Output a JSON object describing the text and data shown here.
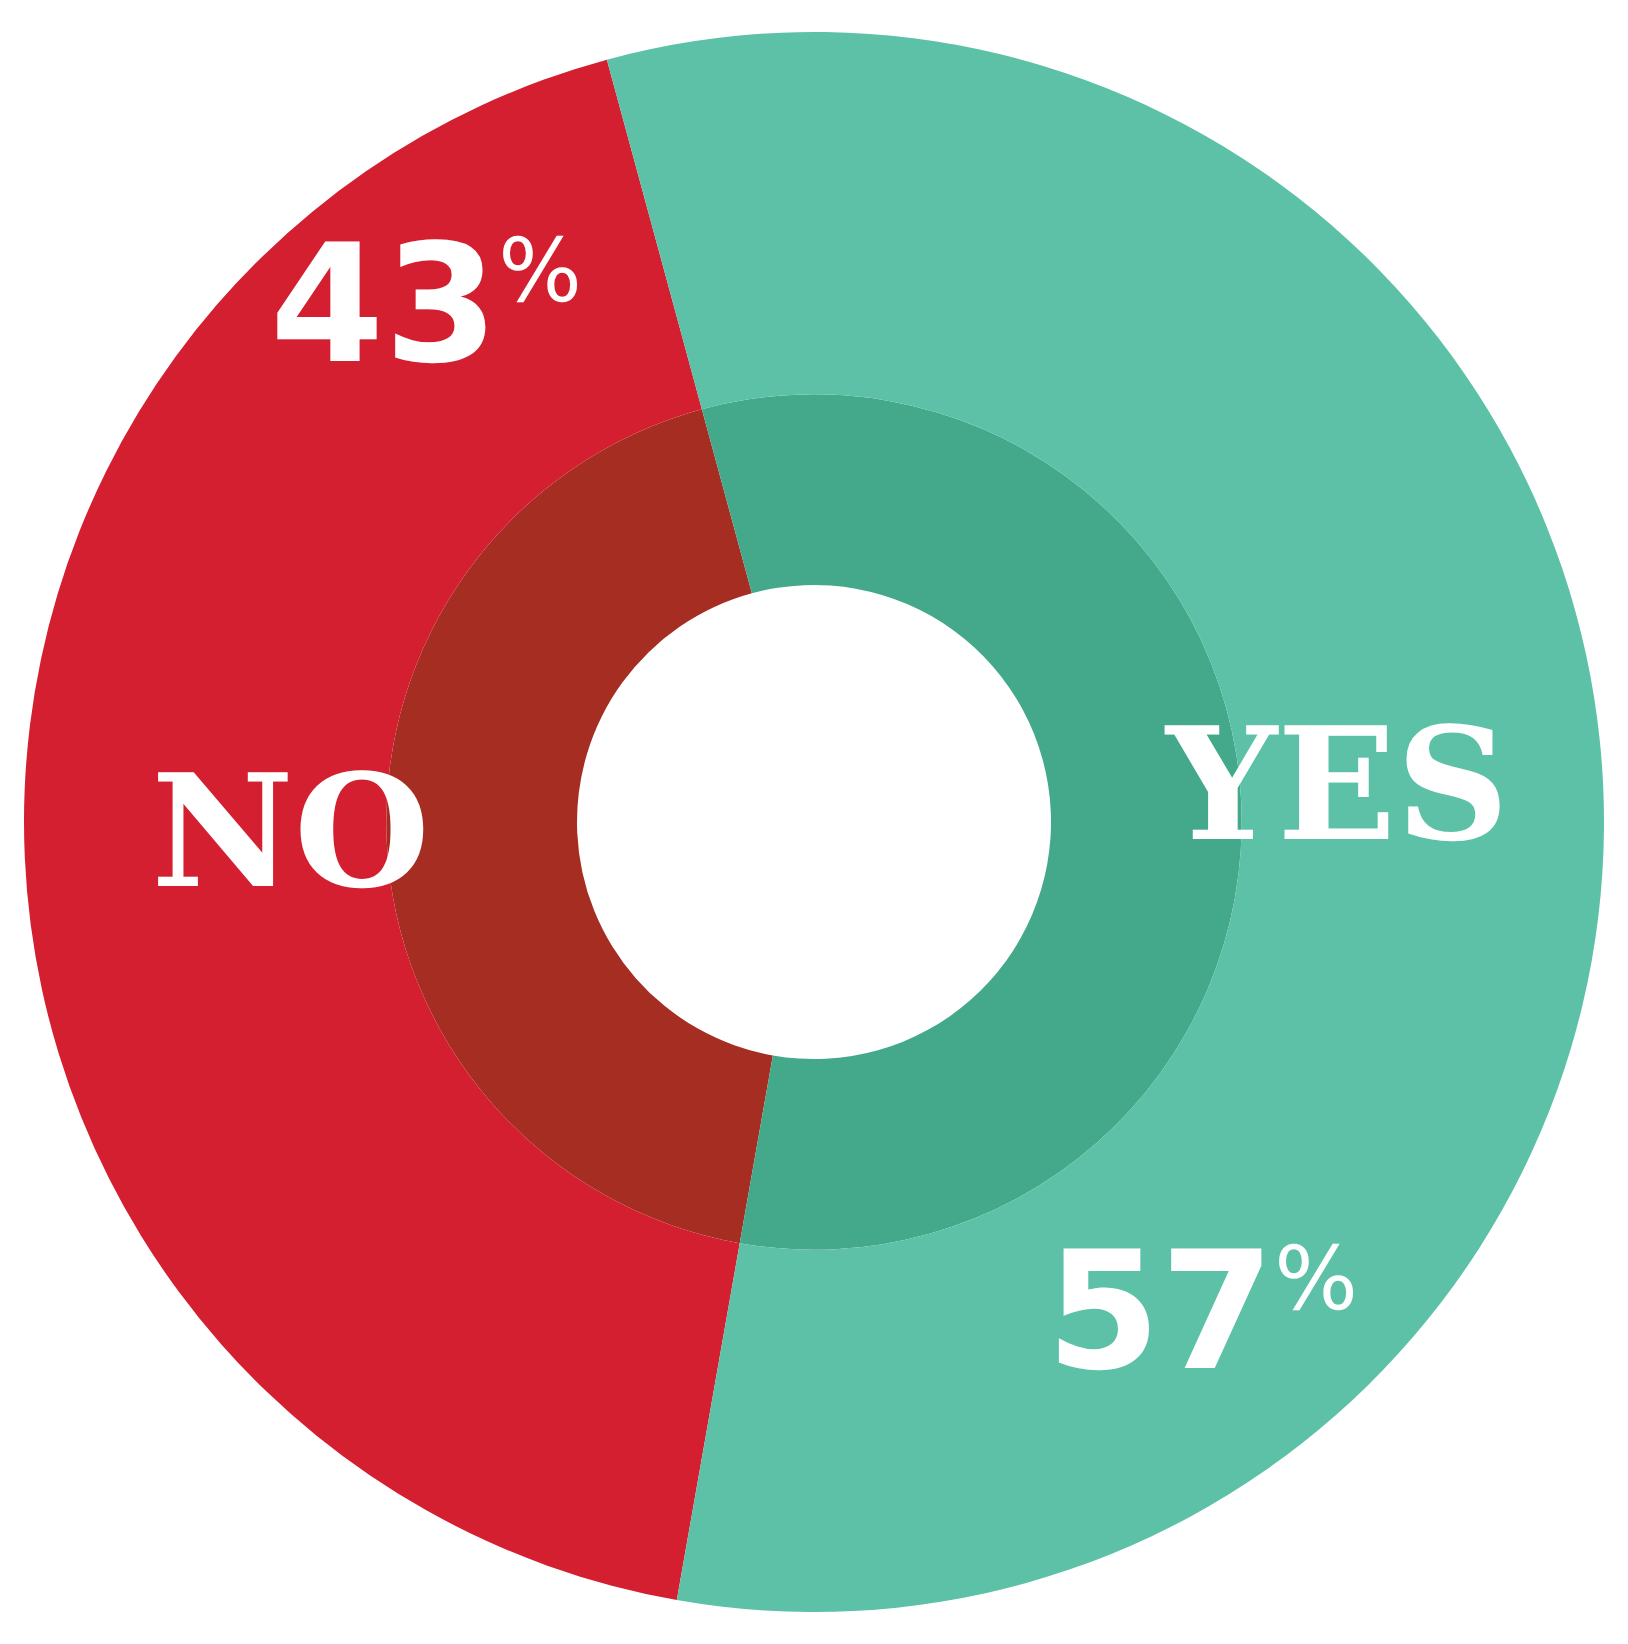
{
  "chart_data": {
    "type": "donut",
    "categories": [
      "NO",
      "YES"
    ],
    "series": [
      {
        "values": [
          43,
          57
        ],
        "colors": [
          "#a52d22",
          "#44a88a"
        ]
      },
      {
        "values": [
          43,
          57
        ],
        "colors": [
          "#d41f30",
          "#5cc1a7"
        ],
        "value_labels": [
          "43%",
          "57%"
        ]
      }
    ],
    "legend": false
  }
}
